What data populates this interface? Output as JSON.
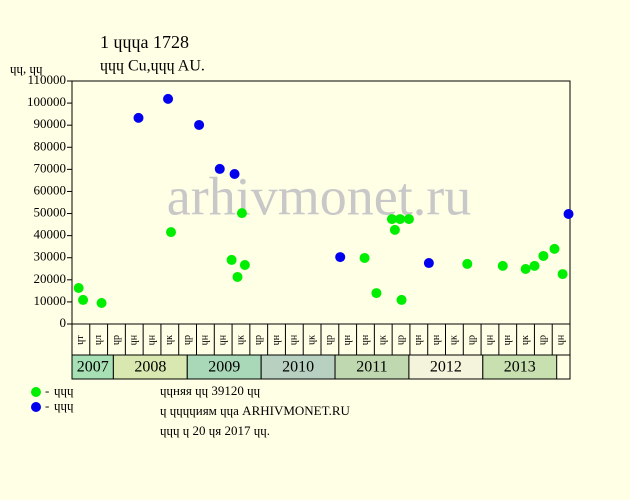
{
  "chart_data": {
    "type": "scatter",
    "title": "1 ɥɥɥа 1728",
    "subtitle": "ɥɥɥ Cu,ɥɥɥ AU.",
    "y_label": "ɥɥ, ɥɥ",
    "watermark": "arhivmonet.ru",
    "xlim": [
      2007.44,
      2014.18
    ],
    "xticks": [
      2008,
      2009,
      2010,
      2011,
      2012,
      2013,
      2014
    ],
    "year_labels": [
      "2007",
      "2008",
      "2009",
      "2010",
      "2011",
      "2012",
      "2013"
    ],
    "year_colors": [
      "#a6e0b4",
      "#d8e8b0",
      "#a8d8b8",
      "#b8d0c0",
      "#c0d8b0",
      "#f4f4dc",
      "#c8e0b0"
    ],
    "column_labels": [
      "ɥт",
      "ɥл",
      "ɥр",
      "ɥн",
      "ɥн",
      "ɥк",
      "ɥр",
      "ɥн",
      "ɥн",
      "ɥк",
      "ɥр",
      "ɥн",
      "ɥн",
      "ɥк",
      "ɥр",
      "ɥн",
      "ɥн",
      "ɥк",
      "ɥр",
      "ɥн",
      "ɥн",
      "ɥк",
      "ɥр",
      "ɥн",
      "ɥн",
      "ɥк",
      "ɥр",
      "ɥн"
    ],
    "ylim": [
      0,
      110000
    ],
    "yticks": [
      0,
      10000,
      20000,
      30000,
      40000,
      50000,
      60000,
      70000,
      80000,
      90000,
      100000,
      110000
    ],
    "series": [
      {
        "name": "ɥɥɥ",
        "color": "#00ee00",
        "x": [
          2007.53,
          2007.59,
          2007.84,
          2008.78,
          2009.6,
          2009.68,
          2009.74,
          2009.78,
          2011.4,
          2011.56,
          2011.77,
          2011.81,
          2011.88,
          2011.9,
          2012.0,
          2012.79,
          2013.27,
          2013.58,
          2013.7,
          2013.82,
          2013.97,
          2014.08
        ],
        "values": [
          16300,
          10900,
          9500,
          41600,
          29000,
          21300,
          50200,
          26700,
          29900,
          14000,
          47500,
          42600,
          47500,
          10900,
          47500,
          27200,
          26300,
          24900,
          26300,
          30800,
          34000,
          22600
        ]
      },
      {
        "name": "ɥɥɥ",
        "color": "#0000ee",
        "x": [
          2008.34,
          2008.74,
          2009.16,
          2009.44,
          2009.64,
          2011.07,
          2012.27,
          2014.16
        ],
        "values": [
          93300,
          101900,
          90100,
          70200,
          67900,
          30300,
          27600,
          49800
        ]
      }
    ],
    "notes": [
      "ɥɥняя ɥɥ 39120 ɥɥ",
      "ɥ ɥɥɥɥиям ɥɥа ARHIVMONET.RU",
      "ɥɥɥ ɥ 20 ɥя 2017 ɥɥ."
    ]
  }
}
